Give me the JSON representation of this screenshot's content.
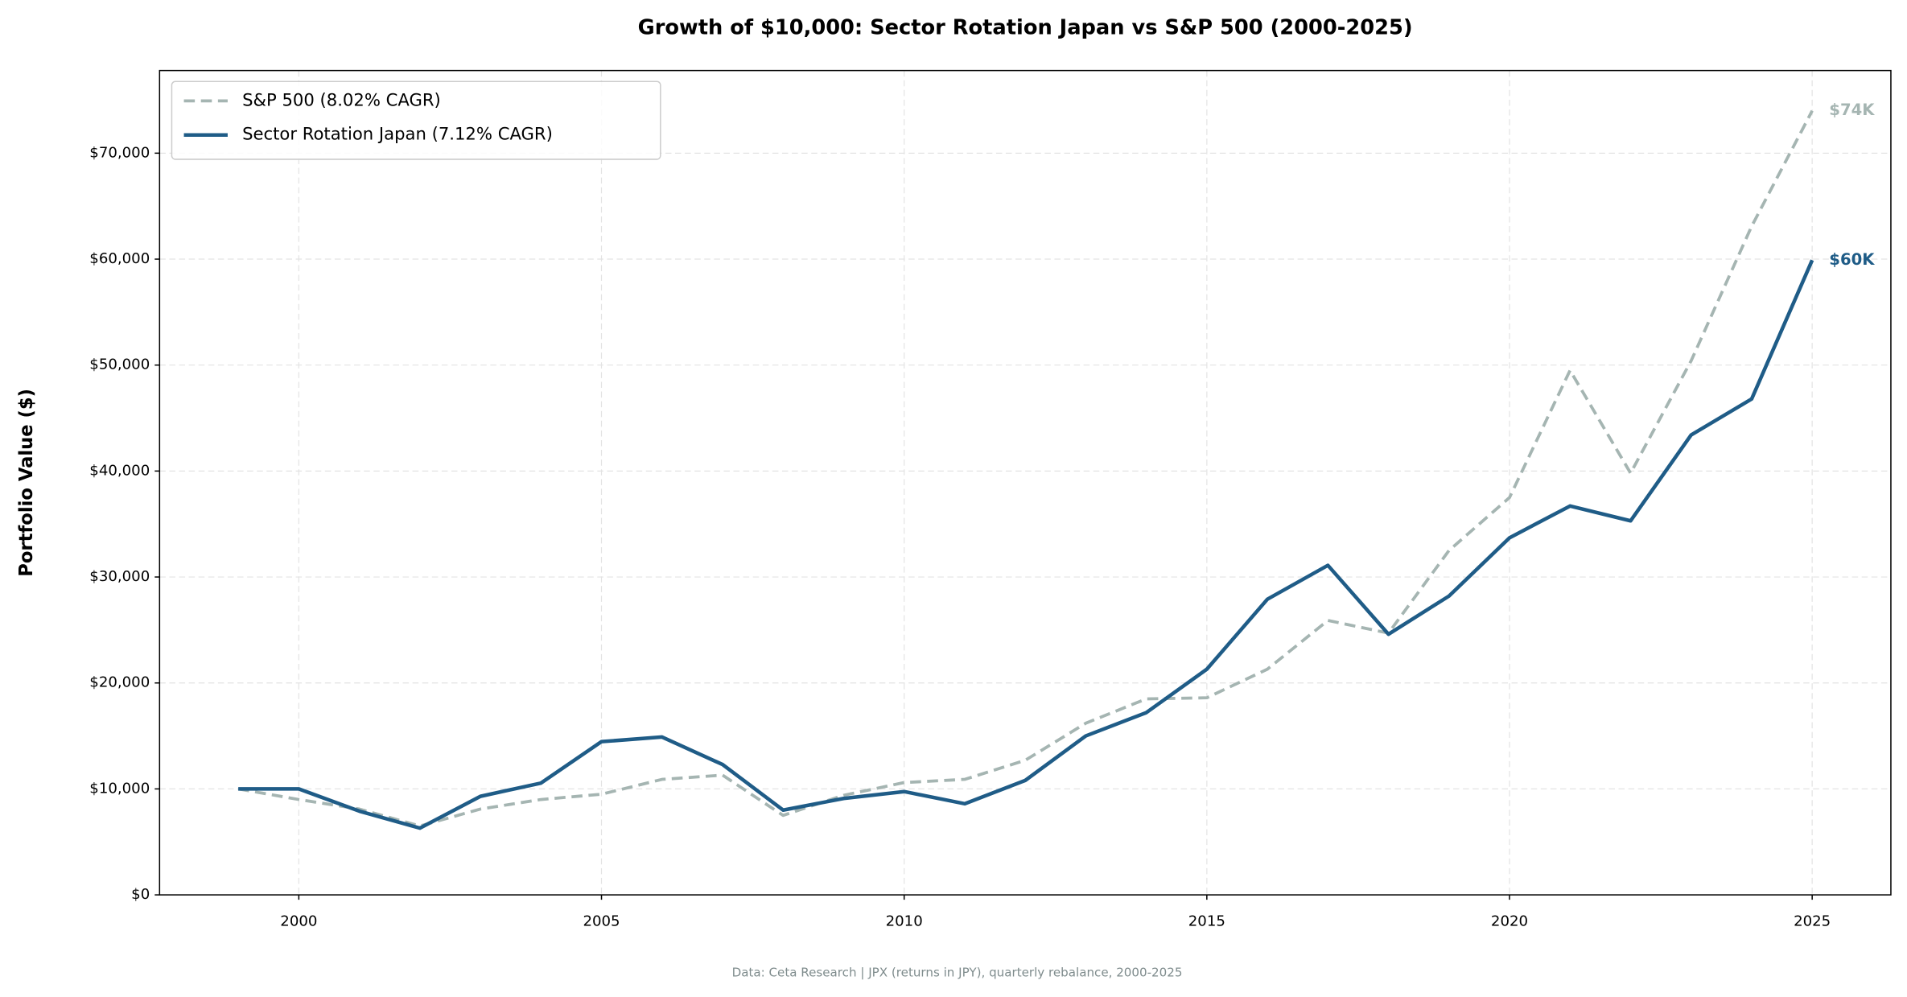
{
  "chart_data": {
    "type": "line",
    "title": "Growth of $10,000: Sector Rotation Japan vs S&P 500 (2000-2025)",
    "y_label": "Portfolio Value ($)",
    "footer": "Data: Ceta Research | JPX (returns in JPY), quarterly rebalance, 2000-2025",
    "x": [
      1999,
      2000,
      2001,
      2002,
      2003,
      2004,
      2005,
      2006,
      2007,
      2008,
      2009,
      2010,
      2011,
      2012,
      2013,
      2014,
      2015,
      2016,
      2017,
      2018,
      2019,
      2020,
      2021,
      2022,
      2023,
      2024,
      2025
    ],
    "series": [
      {
        "name": "S&P 500 (8.02% CAGR)",
        "color": "#a5b5b2",
        "linestyle": "dashed",
        "end_label": "$74K",
        "values": [
          10000,
          9000,
          8100,
          6500,
          8100,
          9000,
          9500,
          10900,
          11300,
          7500,
          9400,
          10600,
          10900,
          12700,
          16200,
          18500,
          18600,
          21300,
          25900,
          24700,
          32500,
          37500,
          49500,
          39800,
          50400,
          63100,
          74000
        ]
      },
      {
        "name": "Sector Rotation Japan (7.12% CAGR)",
        "color": "#1f5c87",
        "linestyle": "solid",
        "end_label": "$60K",
        "values": [
          10000,
          10000,
          7900,
          6300,
          9300,
          10550,
          14460,
          14900,
          12300,
          8000,
          9100,
          9750,
          8600,
          10800,
          15000,
          17200,
          21300,
          27900,
          31100,
          24600,
          28200,
          33700,
          36700,
          35300,
          43400,
          46800,
          59900
        ]
      }
    ],
    "xlim": [
      1997.7,
      2026.3
    ],
    "xticks": [
      2000,
      2005,
      2010,
      2015,
      2020,
      2025
    ],
    "ylim": [
      0,
      77800
    ],
    "yticks": [
      {
        "value": 0,
        "label": "$0"
      },
      {
        "value": 10000,
        "label": "$10,000"
      },
      {
        "value": 20000,
        "label": "$20,000"
      },
      {
        "value": 30000,
        "label": "$30,000"
      },
      {
        "value": 40000,
        "label": "$40,000"
      },
      {
        "value": 50000,
        "label": "$50,000"
      },
      {
        "value": 60000,
        "label": "$60,000"
      },
      {
        "value": 70000,
        "label": "$70,000"
      }
    ],
    "grid": true,
    "legend": "upper left"
  }
}
